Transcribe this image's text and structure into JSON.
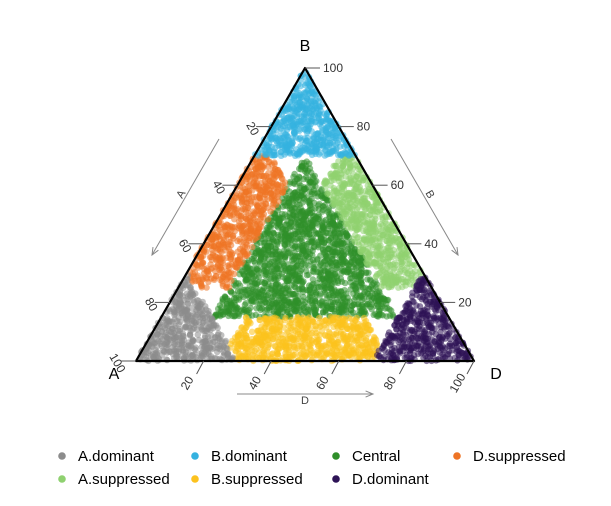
{
  "chart_data": {
    "type": "scatter",
    "subtype": "ternary",
    "title": "",
    "vertices": {
      "left": "A",
      "top": "B",
      "right": "D"
    },
    "axis_titles": {
      "left_side": "A",
      "right_side": "B",
      "bottom": "D"
    },
    "axis_ticks": [
      20,
      40,
      60,
      80,
      100
    ],
    "axis_range": [
      0,
      100
    ],
    "grid": false,
    "legend_position": "bottom",
    "series": [
      {
        "name": "A.dominant",
        "color": "#8c8c8c",
        "region": "A > 70"
      },
      {
        "name": "A.suppressed",
        "color": "#8fd170",
        "region": "A < 15, B ≥ 25, D ≥ 25"
      },
      {
        "name": "B.dominant",
        "color": "#35b2e0",
        "region": "B > 70"
      },
      {
        "name": "B.suppressed",
        "color": "#fcc21e",
        "region": "B < 15, A ≥ 25, D ≥ 25"
      },
      {
        "name": "Central",
        "color": "#2f8f2a",
        "region": "all components ≥ 15"
      },
      {
        "name": "D.dominant",
        "color": "#2d1356",
        "region": "D > 70"
      },
      {
        "name": "D.suppressed",
        "color": "#ee7425",
        "region": "D < 15, A ≥ 25, B ≥ 25"
      }
    ]
  },
  "legend": {
    "items": [
      {
        "label": "A.dominant",
        "color": "#8c8c8c"
      },
      {
        "label": "B.dominant",
        "color": "#35b2e0"
      },
      {
        "label": "Central",
        "color": "#2f8f2a"
      },
      {
        "label": "D.suppressed",
        "color": "#ee7425"
      },
      {
        "label": "A.suppressed",
        "color": "#8fd170"
      },
      {
        "label": "B.suppressed",
        "color": "#fcc21e"
      },
      {
        "label": "D.dominant",
        "color": "#2d1356"
      }
    ]
  }
}
